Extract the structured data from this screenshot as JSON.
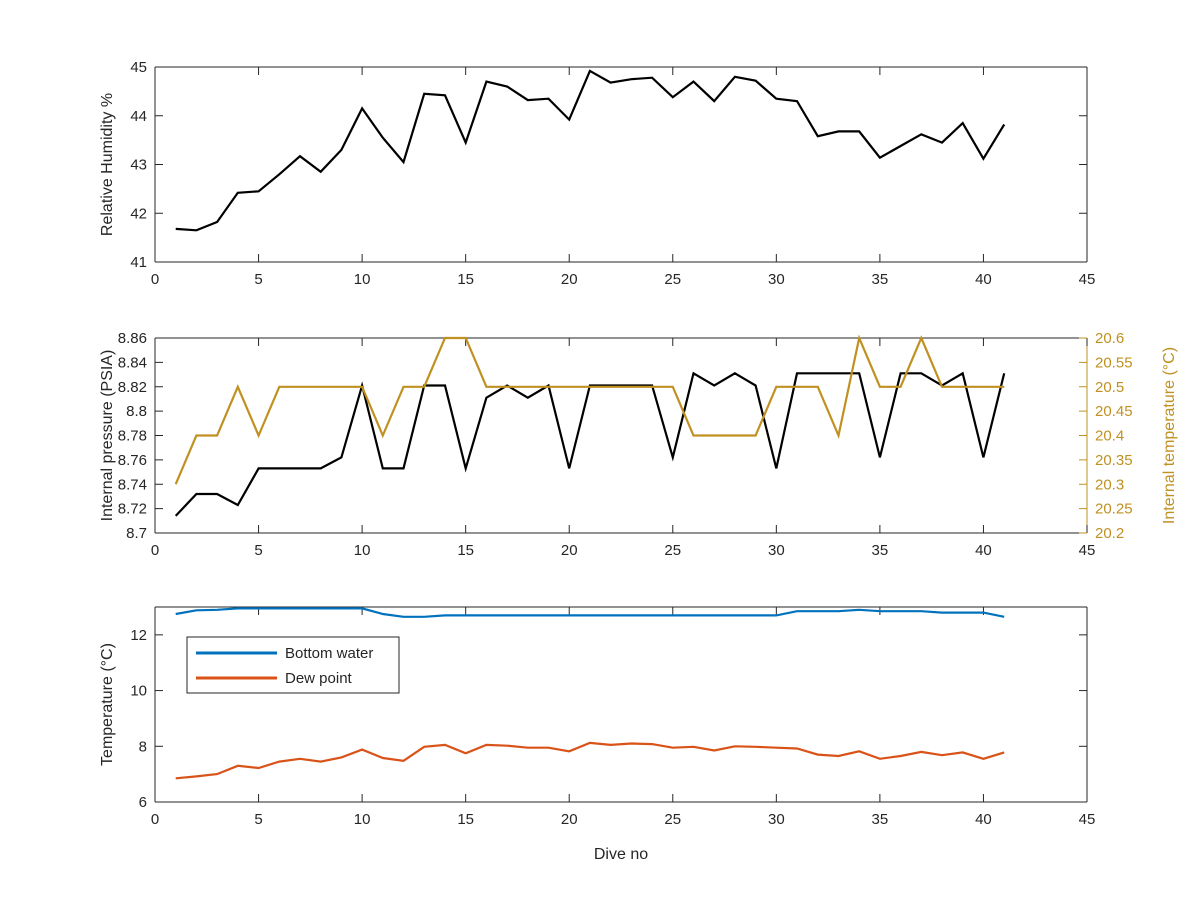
{
  "chart_data": [
    {
      "type": "line",
      "ylabel": "Relative Humidity %",
      "xlim": [
        0,
        45
      ],
      "ylim": [
        41,
        45
      ],
      "xticks": [
        0,
        5,
        10,
        15,
        20,
        25,
        30,
        35,
        40,
        45
      ],
      "yticks": [
        41,
        42,
        43,
        44,
        45
      ],
      "grid": false,
      "series": [
        {
          "color": "#000000",
          "x": [
            1,
            2,
            3,
            4,
            5,
            6,
            7,
            8,
            9,
            10,
            11,
            12,
            13,
            14,
            15,
            16,
            17,
            18,
            19,
            20,
            21,
            22,
            23,
            24,
            25,
            26,
            27,
            28,
            29,
            30,
            31,
            32,
            33,
            34,
            35,
            36,
            37,
            38,
            39,
            40,
            41
          ],
          "values": [
            41.68,
            41.65,
            41.82,
            42.42,
            42.45,
            42.8,
            43.17,
            42.85,
            43.3,
            44.15,
            43.55,
            43.05,
            44.45,
            44.42,
            43.45,
            44.7,
            44.6,
            44.32,
            44.35,
            43.92,
            44.92,
            44.68,
            44.75,
            44.78,
            44.38,
            44.7,
            44.3,
            44.8,
            44.72,
            44.35,
            44.3,
            43.58,
            43.68,
            43.68,
            43.14,
            43.38,
            43.62,
            43.45,
            43.85,
            43.12,
            43.82
          ]
        }
      ]
    },
    {
      "type": "line",
      "ylabel": "Internal pressure (PSIA)",
      "ylabel_right": "Internal temperature (°C)",
      "xlim": [
        0,
        45
      ],
      "ylim": [
        8.7,
        8.86
      ],
      "ylim_right": [
        20.2,
        20.6
      ],
      "xticks": [
        0,
        5,
        10,
        15,
        20,
        25,
        30,
        35,
        40,
        45
      ],
      "yticks": [
        "8.7",
        "8.72",
        "8.74",
        "8.76",
        "8.78",
        "8.8",
        "8.82",
        "8.84",
        "8.86"
      ],
      "yticks_right": [
        "20.2",
        "20.25",
        "20.3",
        "20.35",
        "20.4",
        "20.45",
        "20.5",
        "20.55",
        "20.6"
      ],
      "right_axis_color": "#c09121",
      "grid": false,
      "series": [
        {
          "axis": "left",
          "color": "#000000",
          "x": [
            1,
            2,
            3,
            4,
            5,
            6,
            7,
            8,
            9,
            10,
            11,
            12,
            13,
            14,
            15,
            16,
            17,
            18,
            19,
            20,
            21,
            22,
            23,
            24,
            25,
            26,
            27,
            28,
            29,
            30,
            31,
            32,
            33,
            34,
            35,
            36,
            37,
            38,
            39,
            40,
            41
          ],
          "values": [
            8.714,
            8.732,
            8.732,
            8.723,
            8.753,
            8.753,
            8.753,
            8.753,
            8.762,
            8.821,
            8.753,
            8.753,
            8.821,
            8.821,
            8.753,
            8.811,
            8.821,
            8.811,
            8.821,
            8.753,
            8.821,
            8.821,
            8.821,
            8.821,
            8.762,
            8.831,
            8.821,
            8.831,
            8.821,
            8.753,
            8.831,
            8.831,
            8.831,
            8.831,
            8.762,
            8.831,
            8.831,
            8.821,
            8.831,
            8.762,
            8.831
          ]
        },
        {
          "axis": "right",
          "color": "#c09121",
          "x": [
            1,
            2,
            3,
            4,
            5,
            6,
            7,
            8,
            9,
            10,
            11,
            12,
            13,
            14,
            15,
            16,
            17,
            18,
            19,
            20,
            21,
            22,
            23,
            24,
            25,
            26,
            27,
            28,
            29,
            30,
            31,
            32,
            33,
            34,
            35,
            36,
            37,
            38,
            39,
            40,
            41
          ],
          "values": [
            20.3,
            20.4,
            20.4,
            20.5,
            20.4,
            20.5,
            20.5,
            20.5,
            20.5,
            20.5,
            20.4,
            20.5,
            20.5,
            20.6,
            20.6,
            20.5,
            20.5,
            20.5,
            20.5,
            20.5,
            20.5,
            20.5,
            20.5,
            20.5,
            20.5,
            20.4,
            20.4,
            20.4,
            20.4,
            20.5,
            20.5,
            20.5,
            20.4,
            20.6,
            20.5,
            20.5,
            20.6,
            20.5,
            20.5,
            20.5,
            20.5
          ]
        }
      ]
    },
    {
      "type": "line",
      "xlabel": "Dive no",
      "ylabel": "Temperature (°C)",
      "xlim": [
        0,
        45
      ],
      "ylim": [
        6,
        13
      ],
      "xticks": [
        0,
        5,
        10,
        15,
        20,
        25,
        30,
        35,
        40,
        45
      ],
      "yticks": [
        6,
        8,
        10,
        12
      ],
      "grid": false,
      "legend": "top-left",
      "series": [
        {
          "name": "Bottom water",
          "color": "#0072bd",
          "x": [
            1,
            2,
            3,
            4,
            5,
            6,
            7,
            8,
            9,
            10,
            11,
            12,
            13,
            14,
            15,
            16,
            17,
            18,
            19,
            20,
            21,
            22,
            23,
            24,
            25,
            26,
            27,
            28,
            29,
            30,
            31,
            32,
            33,
            34,
            35,
            36,
            37,
            38,
            39,
            40,
            41
          ],
          "values": [
            12.75,
            12.88,
            12.9,
            12.95,
            12.95,
            12.95,
            12.95,
            12.95,
            12.95,
            12.95,
            12.75,
            12.65,
            12.65,
            12.7,
            12.7,
            12.7,
            12.7,
            12.7,
            12.7,
            12.7,
            12.7,
            12.7,
            12.7,
            12.7,
            12.7,
            12.7,
            12.7,
            12.7,
            12.7,
            12.7,
            12.85,
            12.85,
            12.85,
            12.9,
            12.85,
            12.85,
            12.85,
            12.8,
            12.8,
            12.8,
            12.65
          ]
        },
        {
          "name": "Dew point",
          "color": "#d95319",
          "x": [
            1,
            2,
            3,
            4,
            5,
            6,
            7,
            8,
            9,
            10,
            11,
            12,
            13,
            14,
            15,
            16,
            17,
            18,
            19,
            20,
            21,
            22,
            23,
            24,
            25,
            26,
            27,
            28,
            29,
            30,
            31,
            32,
            33,
            34,
            35,
            36,
            37,
            38,
            39,
            40,
            41
          ],
          "values": [
            6.85,
            6.92,
            7.0,
            7.3,
            7.22,
            7.45,
            7.55,
            7.45,
            7.6,
            7.88,
            7.58,
            7.48,
            7.98,
            8.05,
            7.75,
            8.05,
            8.02,
            7.95,
            7.95,
            7.82,
            8.12,
            8.05,
            8.1,
            8.08,
            7.95,
            7.98,
            7.85,
            8.0,
            7.98,
            7.95,
            7.92,
            7.7,
            7.65,
            7.82,
            7.55,
            7.65,
            7.8,
            7.68,
            7.78,
            7.55,
            7.78
          ]
        }
      ]
    }
  ]
}
